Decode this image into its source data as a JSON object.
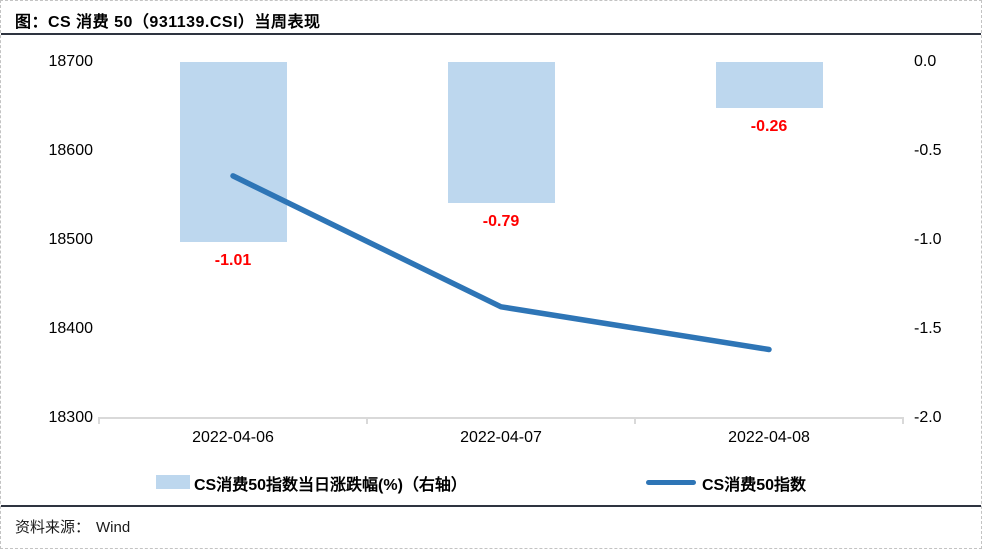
{
  "title": "图：CS 消费 50（931139.CSI）当周表现",
  "source": {
    "label": "资料来源：",
    "value": "Wind"
  },
  "colors": {
    "bar": "#BDD7EE",
    "line": "#2E75B6",
    "data_label": "#FF0000",
    "axis_line": "#D9D9D9",
    "rule": "#2E3440"
  },
  "legend": [
    {
      "type": "bar",
      "label": "CS消费50指数当日涨跌幅(%)（右轴）"
    },
    {
      "type": "line",
      "label": "CS消费50指数"
    }
  ],
  "chart_data": {
    "type": "bar+line combo",
    "categories": [
      "2022-04-06",
      "2022-04-07",
      "2022-04-08"
    ],
    "series": [
      {
        "name": "CS消费50指数当日涨跌幅(%)（右轴）",
        "type": "bar",
        "axis": "right",
        "values": [
          -1.01,
          -0.79,
          -0.26
        ],
        "labels": [
          "-1.01",
          "-0.79",
          "-0.26"
        ]
      },
      {
        "name": "CS消费50指数",
        "type": "line",
        "axis": "left",
        "values": [
          18572,
          18425,
          18377
        ]
      }
    ],
    "left_axis": {
      "ticks": [
        "18700",
        "18600",
        "18500",
        "18400",
        "18300"
      ],
      "max": 18700,
      "min": 18300
    },
    "right_axis": {
      "ticks": [
        "0.0",
        "-0.5",
        "-1.0",
        "-1.5",
        "-2.0"
      ],
      "max": 0.0,
      "min": -2.0
    },
    "grid": false,
    "legend_position": "bottom"
  }
}
